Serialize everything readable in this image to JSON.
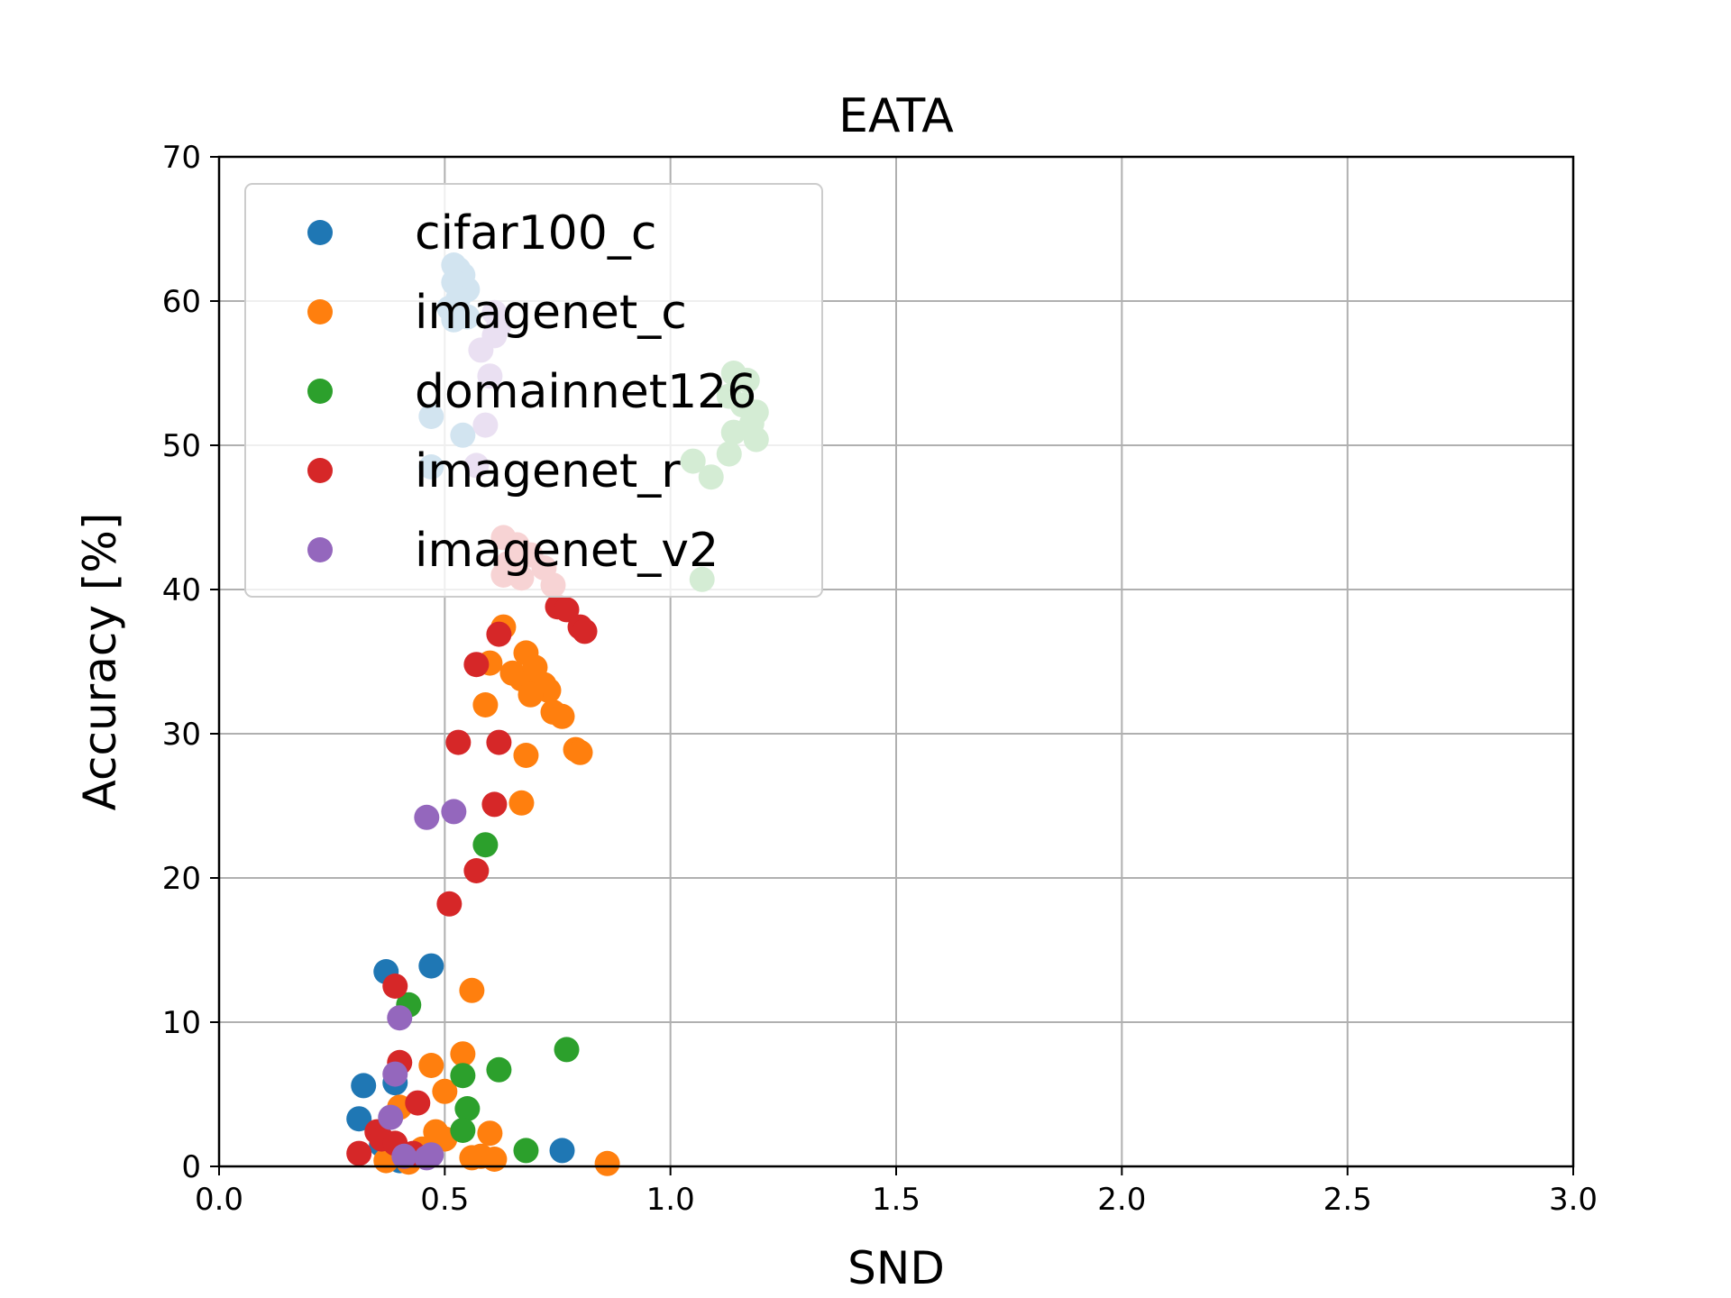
{
  "chart_data": {
    "type": "scatter",
    "title": "EATA",
    "xlabel": "SND",
    "ylabel": "Accuracy [%]",
    "xlim": [
      0.0,
      3.0
    ],
    "ylim": [
      0,
      70
    ],
    "xticks": [
      "0.0",
      "0.5",
      "1.0",
      "1.5",
      "2.0",
      "2.5",
      "3.0"
    ],
    "yticks": [
      "0",
      "10",
      "20",
      "30",
      "40",
      "50",
      "60",
      "70"
    ],
    "grid": true,
    "legend_position": "upper-left",
    "series": [
      {
        "name": "cifar100_c",
        "color": "#1f77b4",
        "points": [
          [
            0.52,
            62.5
          ],
          [
            0.53,
            62.2
          ],
          [
            0.54,
            61.8
          ],
          [
            0.52,
            61.3
          ],
          [
            0.55,
            60.8
          ],
          [
            0.53,
            60.2
          ],
          [
            0.51,
            59.5
          ],
          [
            0.54,
            59.0
          ],
          [
            0.52,
            58.7
          ],
          [
            0.55,
            58.9
          ],
          [
            0.47,
            52.0
          ],
          [
            0.54,
            50.7
          ],
          [
            0.47,
            48.5
          ],
          [
            0.37,
            13.5
          ],
          [
            0.47,
            13.9
          ],
          [
            0.32,
            5.6
          ],
          [
            0.39,
            5.8
          ],
          [
            0.31,
            3.3
          ],
          [
            0.36,
            1.5
          ],
          [
            0.76,
            1.1
          ],
          [
            0.4,
            0.4
          ]
        ]
      },
      {
        "name": "imagenet_c",
        "color": "#ff7f0e",
        "points": [
          [
            0.63,
            37.4
          ],
          [
            0.6,
            34.9
          ],
          [
            0.68,
            35.6
          ],
          [
            0.65,
            34.2
          ],
          [
            0.67,
            33.8
          ],
          [
            0.7,
            34.6
          ],
          [
            0.72,
            33.4
          ],
          [
            0.73,
            33.0
          ],
          [
            0.69,
            32.7
          ],
          [
            0.59,
            32.0
          ],
          [
            0.74,
            31.5
          ],
          [
            0.76,
            31.2
          ],
          [
            0.79,
            28.9
          ],
          [
            0.8,
            28.7
          ],
          [
            0.68,
            28.5
          ],
          [
            0.67,
            25.2
          ],
          [
            0.56,
            12.2
          ],
          [
            0.54,
            7.8
          ],
          [
            0.47,
            7.0
          ],
          [
            0.5,
            5.2
          ],
          [
            0.4,
            4.1
          ],
          [
            0.48,
            2.4
          ],
          [
            0.6,
            2.3
          ],
          [
            0.5,
            1.9
          ],
          [
            0.45,
            1.2
          ],
          [
            0.56,
            0.6
          ],
          [
            0.58,
            0.7
          ],
          [
            0.61,
            0.5
          ],
          [
            0.37,
            0.4
          ],
          [
            0.42,
            0.3
          ],
          [
            0.86,
            0.2
          ]
        ]
      },
      {
        "name": "domainnet126",
        "color": "#2ca02c",
        "points": [
          [
            1.14,
            55.0
          ],
          [
            1.17,
            54.5
          ],
          [
            1.13,
            53.4
          ],
          [
            1.16,
            52.8
          ],
          [
            1.19,
            52.3
          ],
          [
            1.18,
            51.5
          ],
          [
            1.14,
            50.9
          ],
          [
            1.19,
            50.4
          ],
          [
            1.13,
            49.4
          ],
          [
            1.05,
            48.9
          ],
          [
            1.09,
            47.8
          ],
          [
            1.07,
            40.7
          ],
          [
            0.59,
            22.3
          ],
          [
            0.42,
            11.2
          ],
          [
            0.77,
            8.1
          ],
          [
            0.62,
            6.7
          ],
          [
            0.54,
            6.3
          ],
          [
            0.55,
            4.0
          ],
          [
            0.54,
            2.5
          ],
          [
            0.68,
            1.1
          ]
        ]
      },
      {
        "name": "imagenet_r",
        "color": "#d62728",
        "points": [
          [
            0.63,
            43.6
          ],
          [
            0.66,
            43.1
          ],
          [
            0.69,
            42.4
          ],
          [
            0.64,
            41.8
          ],
          [
            0.72,
            41.5
          ],
          [
            0.63,
            41.0
          ],
          [
            0.67,
            40.8
          ],
          [
            0.74,
            40.3
          ],
          [
            0.75,
            38.8
          ],
          [
            0.77,
            38.6
          ],
          [
            0.8,
            37.4
          ],
          [
            0.81,
            37.1
          ],
          [
            0.62,
            36.9
          ],
          [
            0.57,
            34.8
          ],
          [
            0.53,
            29.4
          ],
          [
            0.62,
            29.4
          ],
          [
            0.61,
            25.1
          ],
          [
            0.57,
            20.5
          ],
          [
            0.51,
            18.2
          ],
          [
            0.39,
            12.5
          ],
          [
            0.4,
            7.2
          ],
          [
            0.44,
            4.4
          ],
          [
            0.35,
            2.4
          ],
          [
            0.36,
            1.9
          ],
          [
            0.39,
            1.6
          ],
          [
            0.43,
            0.9
          ],
          [
            0.31,
            0.9
          ]
        ]
      },
      {
        "name": "imagenet_v2",
        "color": "#9467bd",
        "points": [
          [
            0.61,
            59.2
          ],
          [
            0.62,
            58.3
          ],
          [
            0.61,
            57.6
          ],
          [
            0.58,
            56.6
          ],
          [
            0.6,
            54.8
          ],
          [
            0.59,
            51.4
          ],
          [
            0.57,
            48.6
          ],
          [
            0.46,
            24.2
          ],
          [
            0.52,
            24.6
          ],
          [
            0.4,
            10.3
          ],
          [
            0.39,
            6.4
          ],
          [
            0.38,
            3.4
          ],
          [
            0.41,
            0.7
          ],
          [
            0.46,
            0.6
          ],
          [
            0.47,
            0.8
          ]
        ]
      }
    ]
  }
}
